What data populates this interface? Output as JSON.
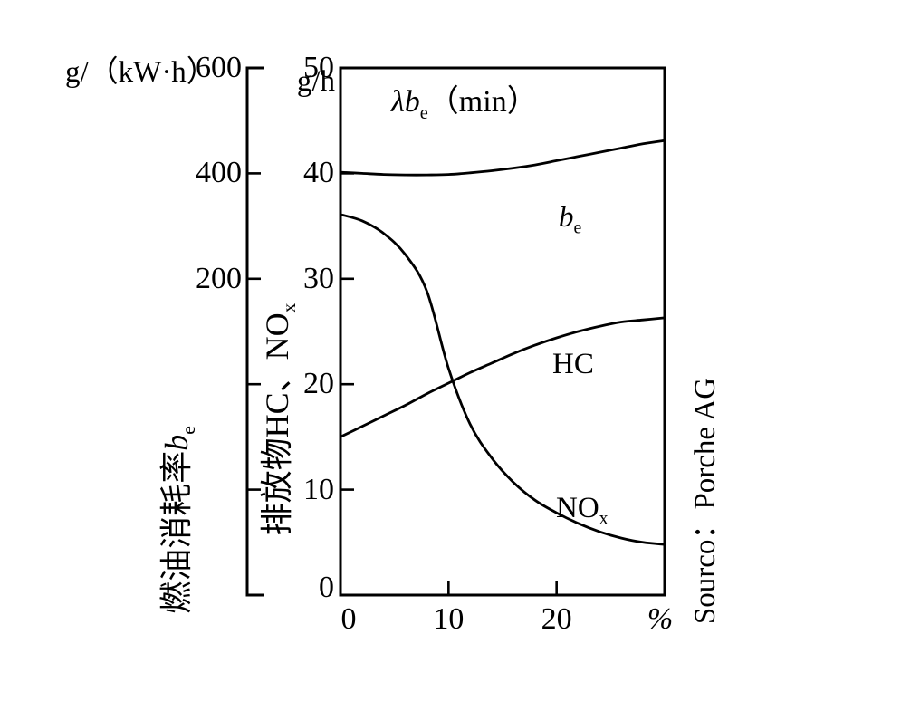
{
  "page": {
    "background": "#ffffff",
    "ink": "#000000"
  },
  "plot_title": {
    "italic": "λb",
    "sub": "e",
    "rest": "（min）"
  },
  "left_axis": {
    "unit": "g/（kW·h）",
    "tick_labels": [
      "600",
      "400",
      "200"
    ],
    "title_text": "燃油消耗率",
    "title_italic": "b",
    "title_sub": "e"
  },
  "inner_axis": {
    "unit": "g/h",
    "tick_labels": [
      "50",
      "40",
      "30",
      "20",
      "10",
      "0"
    ],
    "title_text": "排放物HC、NO",
    "title_sub": "x"
  },
  "x_axis": {
    "tick_labels": [
      "0",
      "10",
      "20"
    ],
    "unit": "%"
  },
  "curve_labels": {
    "be_italic": "b",
    "be_sub": "e",
    "hc": "HC",
    "nox_text": "NO",
    "nox_sub": "x"
  },
  "source": "Sourco：Porche AG",
  "chart_data": {
    "type": "line",
    "title": "λbe（min）",
    "y_unit": "g/h",
    "secondary_y_unit": "g/（kW·h）",
    "x_unit": "%",
    "xlim": [
      0,
      30
    ],
    "ylim": [
      0,
      50
    ],
    "x_ticks": [
      0,
      10,
      20
    ],
    "y_ticks": [
      50,
      40,
      30,
      20,
      10,
      0
    ],
    "secondary_y_tick_labels": [
      600,
      400,
      200
    ],
    "grid": false,
    "legend": "inline-curve-labels",
    "source": "Sourco：Porche AG",
    "x": [
      0,
      2,
      4,
      6,
      8,
      10,
      12,
      14,
      16,
      18,
      20,
      22,
      24,
      26,
      28,
      30
    ],
    "series": [
      {
        "name": "be",
        "values": [
          40.1,
          40.0,
          39.9,
          39.85,
          39.85,
          39.9,
          40.05,
          40.25,
          40.5,
          40.8,
          41.2,
          41.6,
          42.0,
          42.4,
          42.8,
          43.1
        ]
      },
      {
        "name": "HC",
        "values": [
          15.0,
          16.0,
          17.0,
          18.0,
          19.1,
          20.1,
          21.1,
          22.0,
          22.9,
          23.7,
          24.4,
          25.0,
          25.5,
          25.9,
          26.1,
          26.3
        ]
      },
      {
        "name": "NOx",
        "values": [
          36.1,
          35.5,
          34.3,
          32.3,
          28.8,
          21.5,
          16.2,
          13.0,
          10.7,
          9.0,
          7.8,
          6.8,
          6.0,
          5.4,
          5.0,
          4.8
        ]
      }
    ]
  }
}
